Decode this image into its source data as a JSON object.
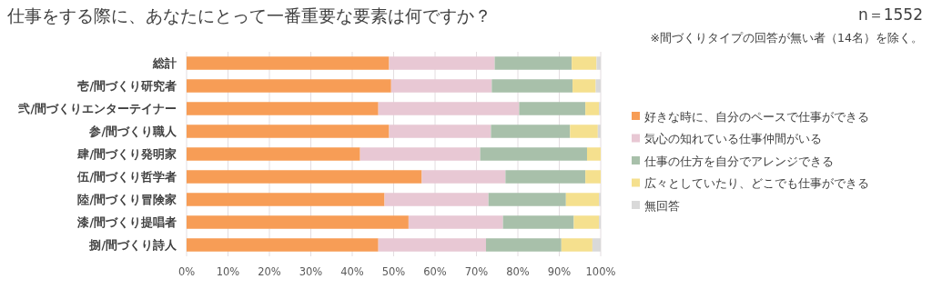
{
  "chart_data": {
    "type": "bar",
    "orientation": "horizontal",
    "stacked": true,
    "title": "仕事をする際に、あなたにとって一番重要な要素は何ですか？",
    "annotations": [
      "n＝1552",
      "※間づくりタイプの回答が無い者（14名）を除く。"
    ],
    "categories": [
      "総計",
      "壱/間づくり研究者",
      "弐/間づくりエンターテイナー",
      "参/間づくり職人",
      "肆/間づくり発明家",
      "伍/間づくり哲学者",
      "陸/間づくり冒険家",
      "漆/間づくり提唱者",
      "捌/間づくり詩人"
    ],
    "series": [
      {
        "name": "好きな時に、自分のペースで仕事ができる",
        "color": "#f79d56",
        "values": [
          48.9,
          49.4,
          46.3,
          48.9,
          41.9,
          56.8,
          47.8,
          53.6,
          46.3
        ]
      },
      {
        "name": "気心の知れている仕事仲間がいる",
        "color": "#e8c8d4",
        "values": [
          25.5,
          24.3,
          34.0,
          24.6,
          29.0,
          20.2,
          25.1,
          22.8,
          26.0
        ]
      },
      {
        "name": "仕事の仕方を自分でアレンジできる",
        "color": "#a8c0aa",
        "values": [
          18.6,
          19.5,
          16.0,
          19.1,
          25.8,
          19.3,
          18.7,
          17.1,
          18.2
        ]
      },
      {
        "name": "広々としていたり、どこでも仕事ができる",
        "color": "#f5e08e",
        "values": [
          6.0,
          5.6,
          3.3,
          6.7,
          3.3,
          3.7,
          8.0,
          6.1,
          7.5
        ]
      },
      {
        "name": "無回答",
        "color": "#d9d9d9",
        "values": [
          1.0,
          1.2,
          0.4,
          0.7,
          0,
          0,
          0.4,
          0.4,
          2.0
        ]
      }
    ],
    "xlim": [
      0,
      100
    ],
    "xticks": [
      {
        "value": 0,
        "label": "0%"
      },
      {
        "value": 10,
        "label": "10%"
      },
      {
        "value": 20,
        "label": "20%"
      },
      {
        "value": 30,
        "label": "30%"
      },
      {
        "value": 40,
        "label": "40%"
      },
      {
        "value": 50,
        "label": "50%"
      },
      {
        "value": 60,
        "label": "60%"
      },
      {
        "value": 70,
        "label": "70%"
      },
      {
        "value": 80,
        "label": "80%"
      },
      {
        "value": 90,
        "label": "90%"
      },
      {
        "value": 100,
        "label": "100%"
      }
    ],
    "grid": "x",
    "legend": "right"
  }
}
